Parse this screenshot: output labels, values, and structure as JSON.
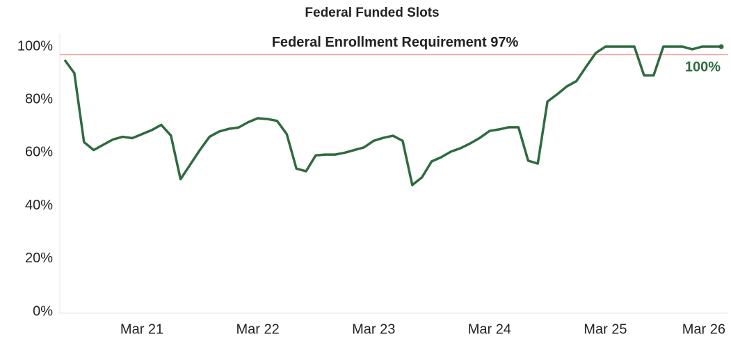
{
  "chart_data": {
    "type": "line",
    "title": "Federal Funded Slots",
    "categories": [
      null,
      null,
      null,
      null,
      null,
      null,
      null,
      null,
      "Mar 21",
      null,
      null,
      null,
      null,
      null,
      null,
      null,
      null,
      null,
      null,
      null,
      "Mar 22",
      null,
      null,
      null,
      null,
      null,
      null,
      null,
      null,
      null,
      null,
      null,
      "Mar 23",
      null,
      null,
      null,
      null,
      null,
      null,
      null,
      null,
      null,
      null,
      null,
      "Mar 24",
      null,
      null,
      null,
      null,
      null,
      null,
      null,
      null,
      null,
      null,
      null,
      "Mar 25",
      null,
      null,
      null,
      null,
      null,
      null,
      null,
      null,
      null,
      null,
      null,
      "Mar 26"
    ],
    "series": [
      {
        "color": "#2e6b3f",
        "values": [
          95,
          90,
          64,
          61,
          63,
          65,
          66,
          65.5,
          67,
          68.5,
          70.5,
          66.5,
          50,
          55.5,
          61,
          66,
          68,
          69,
          69.5,
          71.5,
          73,
          72.7,
          72,
          67,
          54,
          53,
          59,
          59.3,
          59.3,
          60,
          61,
          62,
          64.5,
          65.6,
          66.4,
          64.5,
          47.8,
          50.7,
          56.7,
          58.3,
          60.4,
          61.7,
          63.5,
          65.6,
          68.2,
          68.8,
          69.6,
          69.6,
          57,
          55.9,
          79.3,
          82,
          85,
          87,
          92.4,
          97.6,
          100,
          100,
          100,
          100,
          89.2,
          89.2,
          100,
          100,
          100,
          99,
          100,
          100,
          100
        ],
        "value_labels": [
          null,
          null,
          null,
          null,
          null,
          null,
          null,
          null,
          null,
          null,
          null,
          null,
          null,
          null,
          null,
          null,
          null,
          null,
          null,
          null,
          null,
          null,
          null,
          null,
          null,
          null,
          null,
          null,
          null,
          null,
          null,
          null,
          null,
          null,
          null,
          null,
          null,
          null,
          null,
          null,
          null,
          null,
          null,
          null,
          null,
          null,
          null,
          null,
          null,
          null,
          null,
          null,
          null,
          null,
          null,
          null,
          null,
          null,
          null,
          null,
          null,
          null,
          null,
          null,
          null,
          null,
          null,
          null,
          "100%"
        ]
      }
    ],
    "reference_line": {
      "value": 97,
      "label": "Federal Enrollment Requirement 97%",
      "color": "#f2a3a3",
      "label_color": "#e8202a"
    },
    "ylim": [
      0,
      105
    ],
    "yticks": [
      {
        "value": 0,
        "label": "0%"
      },
      {
        "value": 20,
        "label": "20%"
      },
      {
        "value": 40,
        "label": "40%"
      },
      {
        "value": 60,
        "label": "60%"
      },
      {
        "value": 80,
        "label": "80%"
      },
      {
        "value": 100,
        "label": "100%"
      }
    ]
  }
}
